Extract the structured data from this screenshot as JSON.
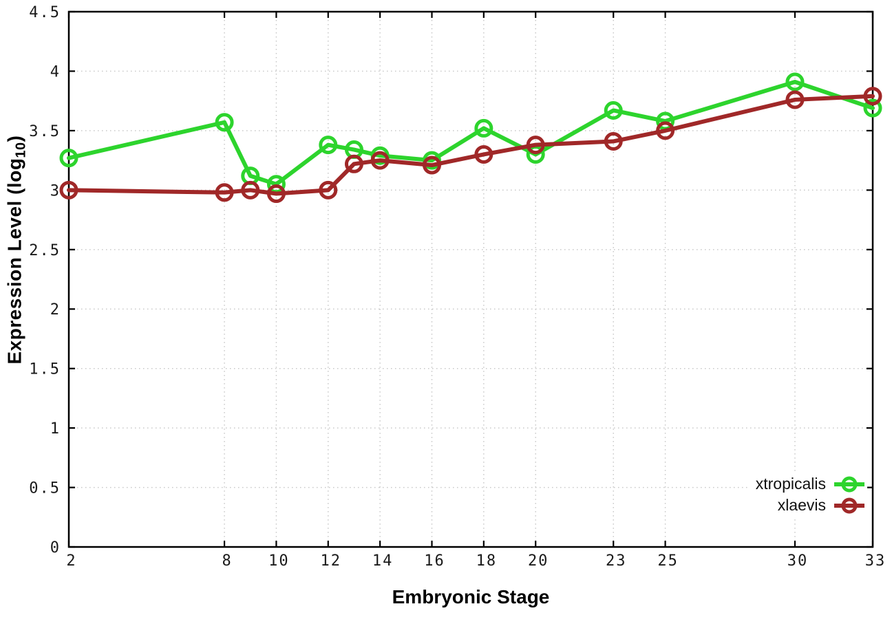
{
  "chart_data": {
    "type": "line",
    "title": "",
    "xlabel": "Embryonic Stage",
    "ylabel": "Expression Level (log10)",
    "ylabel_parts": {
      "main": "Expression Level (log",
      "sub": "10",
      "close": ")"
    },
    "xlim": [
      2,
      33
    ],
    "ylim": [
      0,
      4.5
    ],
    "x_ticks": [
      2,
      8,
      10,
      12,
      14,
      16,
      18,
      20,
      23,
      25,
      30,
      33
    ],
    "y_ticks": [
      0,
      0.5,
      1,
      1.5,
      2,
      2.5,
      3,
      3.5,
      4,
      4.5
    ],
    "grid": true,
    "grid_style": "dotted",
    "legend_position": "bottom-right",
    "background_color": "#ffffff",
    "border_color": "#000000",
    "grid_color": "#c4c4c4",
    "categories_note": "x = embryonic stage number, shared by both series",
    "x": [
      2,
      8,
      9,
      10,
      12,
      13,
      14,
      16,
      18,
      20,
      23,
      25,
      30,
      33
    ],
    "series": [
      {
        "name": "xtropicalis",
        "color": "#2dd42d",
        "marker": "open-circle",
        "values": [
          3.27,
          3.57,
          3.12,
          3.05,
          3.38,
          3.34,
          3.29,
          3.25,
          3.52,
          3.3,
          3.67,
          3.58,
          3.91,
          3.69
        ]
      },
      {
        "name": "xlaevis",
        "color": "#a02828",
        "marker": "open-circle",
        "values": [
          3.0,
          2.98,
          3.0,
          2.97,
          3.0,
          3.22,
          3.25,
          3.21,
          3.3,
          3.38,
          3.41,
          3.5,
          3.76,
          3.79
        ]
      }
    ]
  }
}
